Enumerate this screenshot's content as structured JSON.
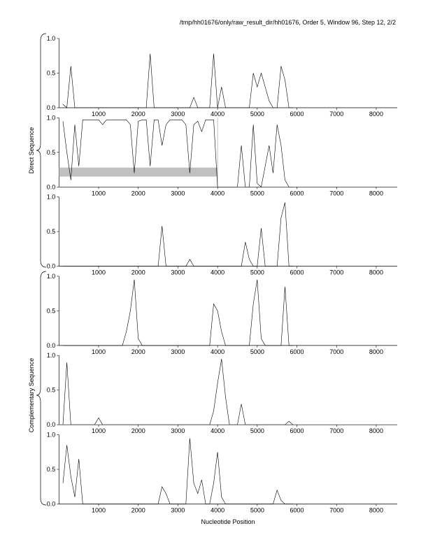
{
  "header": {
    "title": "/tmp/hh01676/only/raw_result_dir/hh01676, Order 5, Window 96, Step 12, 2/2"
  },
  "axis_labels": {
    "direct": "Direct Sequence",
    "complementary": "Complementary Sequence",
    "x": "Nucleotide Position"
  },
  "chart_data": [
    {
      "type": "line",
      "x": [
        100,
        200,
        300,
        400,
        500,
        600,
        700,
        800,
        900,
        1000,
        1100,
        1200,
        1300,
        1400,
        1500,
        1600,
        1700,
        1800,
        1900,
        2000,
        2100,
        2200,
        2300,
        2400,
        2500,
        2600,
        2700,
        2800,
        2900,
        3000,
        3100,
        3200,
        3300,
        3400,
        3500,
        3600,
        3700,
        3800,
        3900,
        4000,
        4100,
        4200,
        4300,
        4400,
        4500,
        4600,
        4700,
        4800,
        4900,
        5000,
        5100,
        5200,
        5300,
        5400,
        5500,
        5600,
        5700,
        5800,
        5900
      ],
      "series": [
        {
          "color": "#000000",
          "values": [
            0.05,
            0,
            0.6,
            0,
            0,
            0,
            0,
            0,
            0,
            0,
            0,
            0,
            0,
            0,
            0,
            0,
            0,
            0,
            0,
            0,
            0,
            0,
            0.78,
            0,
            0,
            0,
            0,
            0,
            0,
            0,
            0,
            0,
            0,
            0.15,
            0,
            0,
            0,
            0,
            0.78,
            0,
            0.3,
            0,
            0,
            0,
            0,
            0,
            0,
            0,
            0.5,
            0.3,
            0.5,
            0.3,
            0.1,
            0,
            0,
            0.6,
            0.4,
            0,
            0
          ]
        }
      ],
      "xlim": [
        0,
        8530
      ],
      "ylim": [
        0,
        1
      ],
      "xticks": [
        1000,
        2000,
        3000,
        4000,
        5000,
        6000,
        7000,
        8000
      ],
      "yticks": [
        {
          "value": 0,
          "label": "0.0"
        },
        {
          "value": 0.5,
          "label": "0.5"
        },
        {
          "value": 1,
          "label": "1.0"
        }
      ]
    },
    {
      "type": "line",
      "x": [
        100,
        200,
        300,
        400,
        500,
        600,
        700,
        800,
        900,
        1000,
        1100,
        1200,
        1300,
        1400,
        1500,
        1600,
        1700,
        1800,
        1900,
        2000,
        2100,
        2200,
        2300,
        2400,
        2500,
        2600,
        2700,
        2800,
        2900,
        3000,
        3100,
        3200,
        3300,
        3400,
        3500,
        3600,
        3700,
        3800,
        3900,
        4000,
        4100,
        4200,
        4300,
        4400,
        4500,
        4600,
        4700,
        4800,
        4900,
        5000,
        5100,
        5200,
        5300,
        5400,
        5500,
        5600,
        5700,
        5800,
        5900
      ],
      "series": [
        {
          "color": "#000000",
          "values": [
            0.95,
            0.5,
            0.1,
            0.9,
            0.3,
            0.97,
            0.97,
            0.97,
            0.97,
            0.97,
            0.9,
            0.97,
            0.97,
            0.97,
            0.97,
            0.97,
            0.97,
            0.9,
            0.2,
            0.95,
            0.97,
            0.97,
            0.3,
            0.97,
            0.97,
            0.6,
            0.9,
            0.97,
            0.97,
            0.97,
            0.97,
            0.9,
            0.2,
            0.9,
            0.95,
            0.8,
            0.97,
            0.97,
            0.97,
            0,
            0,
            0,
            0,
            0,
            0,
            0.6,
            0,
            0,
            0.9,
            0.05,
            0,
            0.3,
            0.6,
            0.2,
            0.9,
            0.6,
            0.1,
            0,
            0
          ]
        }
      ],
      "highlight": {
        "x": [
          0,
          4000
        ],
        "y": [
          0.15,
          0.28
        ],
        "color": "#c0c0c0"
      },
      "xlim": [
        0,
        8530
      ],
      "ylim": [
        0,
        1
      ],
      "xticks": [
        1000,
        2000,
        3000,
        4000,
        5000,
        6000,
        7000,
        8000
      ],
      "yticks": [
        {
          "value": 0,
          "label": "0.0"
        },
        {
          "value": 0.5,
          "label": "0.5"
        },
        {
          "value": 1,
          "label": "1.0"
        }
      ]
    },
    {
      "type": "line",
      "x": [
        100,
        200,
        300,
        400,
        500,
        600,
        700,
        800,
        900,
        1000,
        1100,
        1200,
        1300,
        1400,
        1500,
        1600,
        1700,
        1800,
        1900,
        2000,
        2100,
        2200,
        2300,
        2400,
        2500,
        2600,
        2700,
        2800,
        2900,
        3000,
        3100,
        3200,
        3300,
        3400,
        3500,
        3600,
        3700,
        3800,
        3900,
        4000,
        4100,
        4200,
        4300,
        4400,
        4500,
        4600,
        4700,
        4800,
        4900,
        5000,
        5100,
        5200,
        5300,
        5400,
        5500,
        5600,
        5700,
        5800,
        5900
      ],
      "series": [
        {
          "color": "#000000",
          "values": [
            0,
            0,
            0,
            0,
            0,
            0,
            0,
            0,
            0,
            0,
            0,
            0,
            0,
            0,
            0,
            0,
            0,
            0,
            0,
            0,
            0,
            0,
            0,
            0,
            0,
            0.58,
            0,
            0,
            0,
            0,
            0,
            0,
            0.1,
            0,
            0,
            0,
            0,
            0,
            0,
            0,
            0,
            0,
            0,
            0,
            0,
            0,
            0.35,
            0.1,
            0,
            0,
            0.55,
            0,
            0,
            0,
            0,
            0.7,
            0.92,
            0,
            0
          ]
        }
      ],
      "xlim": [
        0,
        8530
      ],
      "ylim": [
        0,
        1
      ],
      "xticks": [
        1000,
        2000,
        3000,
        4000,
        5000,
        6000,
        7000,
        8000
      ],
      "yticks": [
        {
          "value": 0,
          "label": "0.0"
        },
        {
          "value": 0.5,
          "label": "0.5"
        },
        {
          "value": 1,
          "label": "1.0"
        }
      ]
    },
    {
      "type": "line",
      "x": [
        100,
        200,
        300,
        400,
        500,
        600,
        700,
        800,
        900,
        1000,
        1100,
        1200,
        1300,
        1400,
        1500,
        1600,
        1700,
        1800,
        1900,
        2000,
        2100,
        2200,
        2300,
        2400,
        2500,
        2600,
        2700,
        2800,
        2900,
        3000,
        3100,
        3200,
        3300,
        3400,
        3500,
        3600,
        3700,
        3800,
        3900,
        4000,
        4100,
        4200,
        4300,
        4400,
        4500,
        4600,
        4700,
        4800,
        4900,
        5000,
        5100,
        5200,
        5300,
        5400,
        5500,
        5600,
        5700,
        5800,
        5900
      ],
      "series": [
        {
          "color": "#000000",
          "values": [
            0,
            0,
            0,
            0,
            0,
            0,
            0,
            0,
            0,
            0,
            0,
            0,
            0,
            0,
            0,
            0,
            0.2,
            0.5,
            0.95,
            0.1,
            0,
            0,
            0,
            0,
            0,
            0,
            0,
            0,
            0,
            0,
            0,
            0,
            0,
            0,
            0,
            0,
            0,
            0,
            0.6,
            0.5,
            0.2,
            0,
            0,
            0,
            0,
            0,
            0,
            0,
            0.6,
            0.95,
            0.1,
            0,
            0,
            0,
            0,
            0,
            0.85,
            0,
            0
          ]
        }
      ],
      "xlim": [
        0,
        8530
      ],
      "ylim": [
        0,
        1
      ],
      "xticks": [
        1000,
        2000,
        3000,
        4000,
        5000,
        6000,
        7000,
        8000
      ],
      "yticks": [
        {
          "value": 0,
          "label": "0.0"
        },
        {
          "value": 0.5,
          "label": "0.5"
        },
        {
          "value": 1,
          "label": "1.0"
        }
      ]
    },
    {
      "type": "line",
      "x": [
        100,
        200,
        300,
        400,
        500,
        600,
        700,
        800,
        900,
        1000,
        1100,
        1200,
        1300,
        1400,
        1500,
        1600,
        1700,
        1800,
        1900,
        2000,
        2100,
        2200,
        2300,
        2400,
        2500,
        2600,
        2700,
        2800,
        2900,
        3000,
        3100,
        3200,
        3300,
        3400,
        3500,
        3600,
        3700,
        3800,
        3900,
        4000,
        4100,
        4200,
        4300,
        4400,
        4500,
        4600,
        4700,
        4800,
        4900,
        5000,
        5100,
        5200,
        5300,
        5400,
        5500,
        5600,
        5700,
        5800,
        5900
      ],
      "series": [
        {
          "color": "#000000",
          "values": [
            0,
            0.9,
            0,
            0,
            0,
            0,
            0,
            0,
            0,
            0.1,
            0,
            0,
            0,
            0,
            0,
            0,
            0,
            0,
            0,
            0,
            0,
            0,
            0,
            0,
            0,
            0,
            0,
            0,
            0,
            0,
            0,
            0,
            0,
            0,
            0,
            0,
            0,
            0,
            0.2,
            0.6,
            0.95,
            0.4,
            0,
            0,
            0,
            0.3,
            0,
            0,
            0,
            0,
            0,
            0,
            0,
            0,
            0,
            0,
            0,
            0.05,
            0
          ]
        }
      ],
      "xlim": [
        0,
        8530
      ],
      "ylim": [
        0,
        1
      ],
      "xticks": [
        1000,
        2000,
        3000,
        4000,
        5000,
        6000,
        7000,
        8000
      ],
      "yticks": [
        {
          "value": 0,
          "label": "0.0"
        },
        {
          "value": 0.5,
          "label": "0.5"
        },
        {
          "value": 1,
          "label": "1.0"
        }
      ]
    },
    {
      "type": "line",
      "x": [
        100,
        200,
        300,
        400,
        500,
        600,
        700,
        800,
        900,
        1000,
        1100,
        1200,
        1300,
        1400,
        1500,
        1600,
        1700,
        1800,
        1900,
        2000,
        2100,
        2200,
        2300,
        2400,
        2500,
        2600,
        2700,
        2800,
        2900,
        3000,
        3100,
        3200,
        3300,
        3400,
        3500,
        3600,
        3700,
        3800,
        3900,
        4000,
        4100,
        4200,
        4300,
        4400,
        4500,
        4600,
        4700,
        4800,
        4900,
        5000,
        5100,
        5200,
        5300,
        5400,
        5500,
        5600,
        5700,
        5800,
        5900
      ],
      "series": [
        {
          "color": "#000000",
          "values": [
            0.3,
            0.85,
            0.4,
            0.1,
            0.65,
            0,
            0,
            0,
            0,
            0,
            0,
            0,
            0,
            0,
            0,
            0,
            0,
            0,
            0,
            0,
            0,
            0,
            0,
            0,
            0,
            0.25,
            0.15,
            0,
            0,
            0,
            0,
            0,
            0.95,
            0.3,
            0.15,
            0.35,
            0,
            0,
            0.3,
            0.75,
            0.1,
            0,
            0,
            0,
            0,
            0,
            0,
            0,
            0,
            0,
            0,
            0,
            0,
            0,
            0.2,
            0.05,
            0,
            0,
            0
          ]
        }
      ],
      "xlim": [
        0,
        8530
      ],
      "ylim": [
        0,
        1
      ],
      "xticks": [
        1000,
        2000,
        3000,
        4000,
        5000,
        6000,
        7000,
        8000
      ],
      "yticks": [
        {
          "value": 0,
          "label": "0.0"
        },
        {
          "value": 0.5,
          "label": "0.5"
        },
        {
          "value": 1,
          "label": "1.0"
        }
      ]
    }
  ]
}
